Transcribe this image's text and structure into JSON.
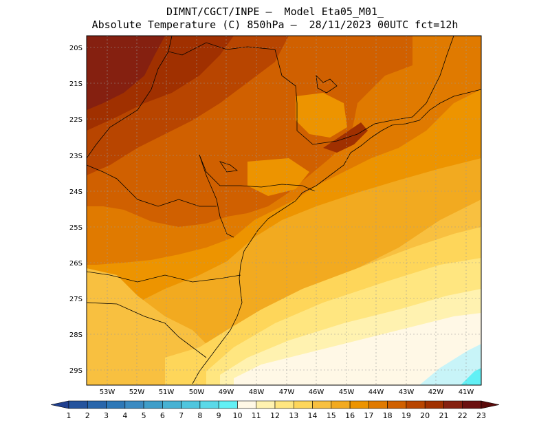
{
  "header": {
    "line1": "DIMNT/CGCT/INPE —  Model Eta05_M01_",
    "line2": "Absolute Temperature (C) 850hPa —  28/11/2023 00UTC fct=12h"
  },
  "axes": {
    "lat_labels": [
      "20S",
      "21S",
      "22S",
      "23S",
      "24S",
      "25S",
      "26S",
      "27S",
      "28S",
      "29S"
    ],
    "lon_labels": [
      "53W",
      "52W",
      "51W",
      "50W",
      "49W",
      "48W",
      "47W",
      "46W",
      "45W",
      "44W",
      "43W",
      "42W",
      "41W"
    ]
  },
  "colorbar": {
    "labels": [
      "1",
      "2",
      "3",
      "4",
      "5",
      "6",
      "7",
      "8",
      "9",
      "10",
      "11",
      "12",
      "13",
      "14",
      "15",
      "16",
      "17",
      "18",
      "19",
      "20",
      "21",
      "22",
      "23"
    ],
    "colors": [
      "#1f3f8f",
      "#24539d",
      "#2966ab",
      "#2e78b7",
      "#3b8bc2",
      "#3f9ec9",
      "#47b2d3",
      "#4fc6de",
      "#5ad9e8",
      "#62f0f5",
      "#fff8e6",
      "#fff2b0",
      "#ffe680",
      "#fed65a",
      "#f8c040",
      "#f2aa20",
      "#ed9400",
      "#e07a00",
      "#d06000",
      "#b84500",
      "#a03000",
      "#852010",
      "#6b1010",
      "#5a0a0a"
    ]
  },
  "palette": {
    "c15": "#f8c040",
    "c16": "#f2aa20",
    "c17": "#ed9400",
    "c18": "#e07a00",
    "c19": "#d06000",
    "c20": "#b84500",
    "c21": "#a03000",
    "c22": "#852010",
    "c14": "#fed65a",
    "c13": "#ffe680",
    "c12": "#fff2b0",
    "c11": "#fff8e6",
    "c10": "#c8f4f8",
    "c9": "#62f0f5"
  }
}
